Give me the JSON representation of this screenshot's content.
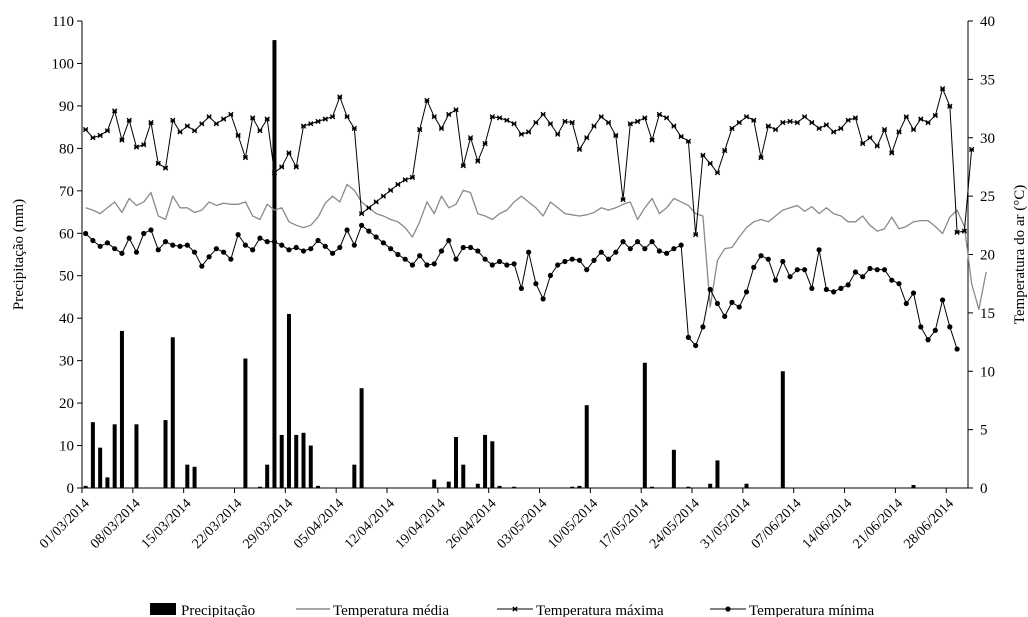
{
  "chart_data": {
    "type": "bar+line",
    "x_dates": [
      "01/03/2014",
      "02/03/2014",
      "03/03/2014",
      "04/03/2014",
      "05/03/2014",
      "06/03/2014",
      "07/03/2014",
      "08/03/2014",
      "09/03/2014",
      "10/03/2014",
      "11/03/2014",
      "12/03/2014",
      "13/03/2014",
      "14/03/2014",
      "15/03/2014",
      "16/03/2014",
      "17/03/2014",
      "18/03/2014",
      "19/03/2014",
      "20/03/2014",
      "21/03/2014",
      "22/03/2014",
      "23/03/2014",
      "24/03/2014",
      "25/03/2014",
      "26/03/2014",
      "27/03/2014",
      "28/03/2014",
      "29/03/2014",
      "30/03/2014",
      "31/03/2014",
      "01/04/2014",
      "02/04/2014",
      "03/04/2014",
      "04/04/2014",
      "05/04/2014",
      "06/04/2014",
      "07/04/2014",
      "08/04/2014",
      "09/04/2014",
      "10/04/2014",
      "11/04/2014",
      "12/04/2014",
      "13/04/2014",
      "14/04/2014",
      "15/04/2014",
      "16/04/2014",
      "17/04/2014",
      "18/04/2014",
      "19/04/2014",
      "20/04/2014",
      "21/04/2014",
      "22/04/2014",
      "23/04/2014",
      "24/04/2014",
      "25/04/2014",
      "26/04/2014",
      "27/04/2014",
      "28/04/2014",
      "29/04/2014",
      "30/04/2014",
      "01/05/2014",
      "02/05/2014",
      "03/05/2014",
      "04/05/2014",
      "05/05/2014",
      "06/05/2014",
      "07/05/2014",
      "08/05/2014",
      "09/05/2014",
      "10/05/2014",
      "11/05/2014",
      "12/05/2014",
      "13/05/2014",
      "14/05/2014",
      "15/05/2014",
      "16/05/2014",
      "17/05/2014",
      "18/05/2014",
      "19/05/2014",
      "20/05/2014",
      "21/05/2014",
      "22/05/2014",
      "23/05/2014",
      "24/05/2014",
      "25/05/2014",
      "26/05/2014",
      "27/05/2014",
      "28/05/2014",
      "29/05/2014",
      "30/05/2014",
      "31/05/2014",
      "01/06/2014",
      "02/06/2014",
      "03/06/2014",
      "04/06/2014",
      "05/06/2014",
      "06/06/2014",
      "07/06/2014",
      "08/06/2014",
      "09/06/2014",
      "10/06/2014",
      "11/06/2014",
      "12/06/2014",
      "13/06/2014",
      "14/06/2014",
      "15/06/2014",
      "16/06/2014",
      "17/06/2014",
      "18/06/2014",
      "19/06/2014",
      "20/06/2014",
      "21/06/2014",
      "22/06/2014",
      "23/06/2014",
      "24/06/2014",
      "25/06/2014",
      "26/06/2014",
      "27/06/2014",
      "28/06/2014",
      "29/06/2014",
      "30/06/2014"
    ],
    "x_tick_labels": [
      "01/03/2014",
      "08/03/2014",
      "15/03/2014",
      "22/03/2014",
      "29/03/2014",
      "05/04/2014",
      "12/04/2014",
      "19/04/2014",
      "26/04/2014",
      "03/05/2014",
      "10/05/2014",
      "17/05/2014",
      "24/05/2014",
      "31/05/2014",
      "07/06/2014",
      "14/06/2014",
      "21/06/2014",
      "28/06/2014"
    ],
    "left_axis": {
      "label": "Precipitação (mm)",
      "ylim": [
        0,
        110
      ],
      "ticks": [
        0,
        10,
        20,
        30,
        40,
        50,
        60,
        70,
        80,
        90,
        100,
        110
      ]
    },
    "right_axis": {
      "label": "Temperatura do ar (°C)",
      "ylim": [
        0,
        40
      ],
      "ticks": [
        0,
        5,
        10,
        15,
        20,
        25,
        30,
        35,
        40
      ]
    },
    "gridlines": false,
    "legend_position": "bottom",
    "precipitation": {
      "name": "Precipitação",
      "values": [
        0.5,
        15.5,
        9.5,
        2.5,
        15,
        37,
        0,
        15,
        0,
        0,
        0,
        16,
        35.5,
        0,
        5.5,
        5,
        0,
        0,
        0,
        0,
        0,
        0,
        30.5,
        0,
        0.3,
        5.5,
        105.5,
        12.5,
        41,
        12.5,
        13,
        10,
        0.5,
        0,
        0,
        0,
        0,
        5.5,
        23.5,
        0,
        0,
        0,
        0,
        0,
        0,
        0,
        0,
        0,
        2,
        0,
        1.5,
        12,
        5.5,
        0,
        1,
        12.5,
        11,
        0.5,
        0,
        0.3,
        0,
        0,
        0,
        0,
        0,
        0,
        0,
        0.3,
        0.5,
        19.5,
        0,
        0,
        0,
        0,
        0,
        0,
        0,
        29.5,
        0.3,
        0,
        0,
        9,
        0,
        0.3,
        0,
        0,
        1,
        6.5,
        0,
        0,
        0,
        1,
        0,
        0,
        0,
        0,
        27.5,
        0,
        0,
        0,
        0,
        0,
        0,
        0,
        0,
        0,
        0,
        0,
        0,
        0,
        0,
        0,
        0,
        0,
        0.7,
        0,
        0,
        0,
        0,
        0,
        0,
        0,
        0,
        0
      ]
    },
    "temp_mean": {
      "name": "Temperatura média",
      "values": [
        24,
        23.8,
        23.5,
        24,
        24.5,
        23.6,
        24.8,
        24.2,
        24.5,
        25.3,
        23.3,
        23,
        25,
        24,
        24,
        23.6,
        23.8,
        24.5,
        24.2,
        24.4,
        24.3,
        24.3,
        24.5,
        23.3,
        23,
        24.3,
        23.8,
        24,
        22.8,
        22.5,
        22.3,
        22.5,
        23.2,
        24.4,
        25,
        24.5,
        26,
        25.5,
        24.5,
        24,
        23.5,
        23.3,
        23,
        22.8,
        22.3,
        21.5,
        22.8,
        24.5,
        23.5,
        25,
        24,
        24.3,
        25.5,
        25.3,
        23.5,
        23.3,
        23,
        23.5,
        23.8,
        24.5,
        25,
        24.5,
        24,
        23.3,
        24.5,
        24,
        23.5,
        23.4,
        23.3,
        23.4,
        23.6,
        24,
        23.8,
        24,
        24.3,
        24.5,
        23,
        24,
        24.8,
        23.5,
        24,
        24.8,
        24.5,
        24.2,
        23.5,
        23.3,
        15.5,
        19.5,
        20.5,
        20.6,
        21.5,
        22.3,
        22.8,
        23,
        22.8,
        23.3,
        23.8,
        24,
        24.2,
        23.7,
        24.1,
        23.5,
        24,
        23.5,
        23.3,
        22.8,
        22.8,
        23.3,
        22.5,
        22,
        22.2,
        23.2,
        22.2,
        22.4,
        22.8,
        22.9,
        22.9,
        22.4,
        21.8,
        23.2,
        23.8,
        22.4,
        17.5,
        15.3,
        18.5
      ]
    },
    "temp_max": {
      "name": "Temperatura máxima",
      "values": [
        30.7,
        30,
        30.2,
        30.6,
        32.3,
        29.8,
        31.5,
        29.2,
        29.4,
        31.3,
        27.8,
        27.4,
        31.5,
        30.5,
        31,
        30.6,
        31.2,
        31.8,
        31.2,
        31.6,
        32,
        30.2,
        28.3,
        31.7,
        30.6,
        31.6,
        27,
        27.5,
        28.7,
        27.5,
        31,
        31.2,
        31.4,
        31.6,
        31.8,
        33.5,
        31.8,
        30.8,
        23.5,
        24,
        24.5,
        25,
        25.5,
        26,
        26.4,
        26.6,
        30.7,
        33.2,
        31.8,
        30.8,
        32,
        32.4,
        27.6,
        30,
        28,
        29.5,
        31.8,
        31.7,
        31.5,
        31.2,
        30.3,
        30.5,
        31.3,
        32,
        31.2,
        30.3,
        31.4,
        31.3,
        29,
        30,
        31,
        31.8,
        31.3,
        30.2,
        24.7,
        31.2,
        31.4,
        31.7,
        29.8,
        32,
        31.7,
        31,
        30.1,
        29.7,
        21.7,
        28.5,
        27.8,
        27,
        28.9,
        30.8,
        31.3,
        31.8,
        31.5,
        28.3,
        31,
        30.7,
        31.3,
        31.4,
        31.3,
        31.8,
        31.3,
        30.8,
        31.1,
        30.5,
        30.8,
        31.5,
        31.7,
        29.5,
        30,
        29.3,
        30.7,
        28.7,
        30.5,
        31.8,
        30.7,
        31.6,
        31.3,
        31.9,
        34.2,
        32.7,
        21.9,
        22,
        29
      ]
    },
    "temp_min": {
      "name": "Temperatura mínima",
      "values": [
        21.8,
        21.2,
        20.7,
        21,
        20.5,
        20.1,
        21.4,
        20.2,
        21.8,
        22.1,
        20.4,
        21.1,
        20.8,
        20.7,
        20.8,
        20.2,
        19,
        19.8,
        20.5,
        20.2,
        19.6,
        21.7,
        20.8,
        20.4,
        21.4,
        21.1,
        21.1,
        20.8,
        20.4,
        20.6,
        20.3,
        20.5,
        21.2,
        20.7,
        20.1,
        20.6,
        22.1,
        20.8,
        22.5,
        22,
        21.5,
        21,
        20.5,
        20,
        19.6,
        19.1,
        19.9,
        19.1,
        19.2,
        20.3,
        21.2,
        19.6,
        20.6,
        20.6,
        20.3,
        19.6,
        19.1,
        19.4,
        19.1,
        19.2,
        17.1,
        20.2,
        17.5,
        16.2,
        18.2,
        19.1,
        19.4,
        19.6,
        19.5,
        18.7,
        19.5,
        20.2,
        19.6,
        20.2,
        21.1,
        20.5,
        21.1,
        20.5,
        21.1,
        20.3,
        20.1,
        20.5,
        20.8,
        12.9,
        12.2,
        13.8,
        17,
        15.8,
        14.7,
        15.9,
        15.5,
        16.8,
        18.9,
        19.9,
        19.6,
        17.8,
        19.4,
        18.1,
        18.7,
        18.7,
        17.1,
        20.4,
        17,
        16.8,
        17.1,
        17.4,
        18.5,
        18.1,
        18.8,
        18.7,
        18.7,
        17.8,
        17.5,
        15.8,
        16.7,
        13.8,
        12.7,
        13.5,
        16.1,
        13.8,
        11.9,
        13
      ],
      "last_index": 120
    },
    "legend": [
      "Precipitação",
      "Temperatura média",
      "Temperatura máxima",
      "Temperatura mínima"
    ]
  }
}
